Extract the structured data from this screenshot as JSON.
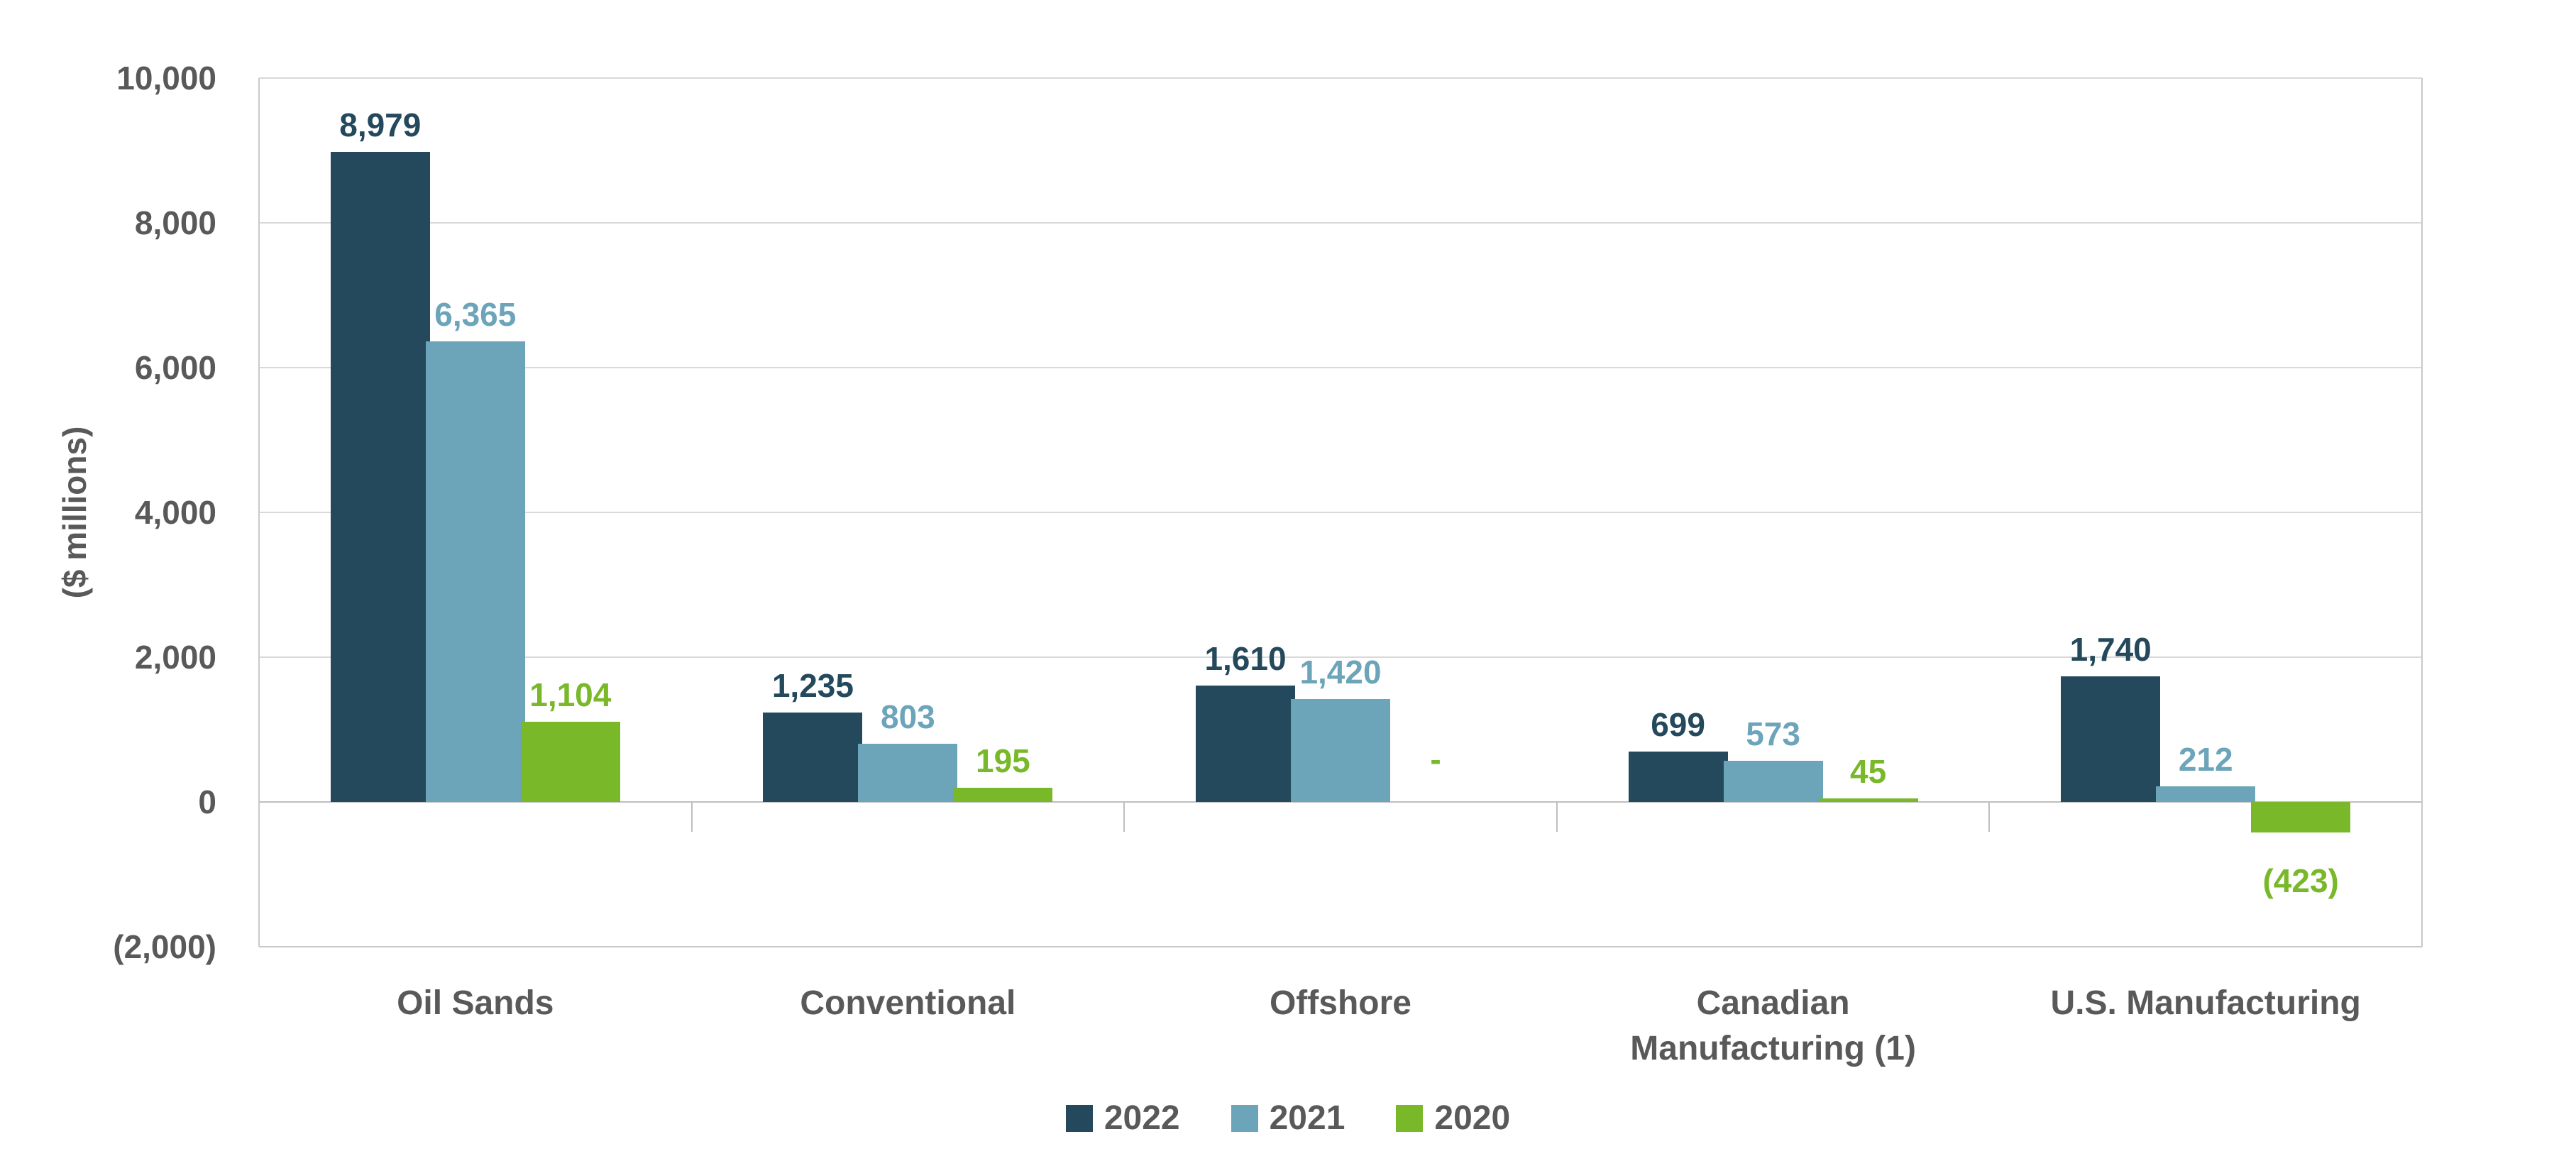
{
  "chart_data": {
    "type": "bar",
    "title": "",
    "ylabel": "($ millions)",
    "grid": true,
    "legend_position": "bottom-center",
    "ylim": [
      -2000,
      10000
    ],
    "y_ticks": [
      {
        "value": 10000,
        "label": "10,000"
      },
      {
        "value": 8000,
        "label": "8,000"
      },
      {
        "value": 6000,
        "label": "6,000"
      },
      {
        "value": 4000,
        "label": "4,000"
      },
      {
        "value": 2000,
        "label": "2,000"
      },
      {
        "value": 0,
        "label": "0"
      },
      {
        "value": -2000,
        "label": "(2,000)"
      }
    ],
    "categories": [
      "Oil Sands",
      "Conventional",
      "Offshore",
      "Canadian Manufacturing (1)",
      "U.S. Manufacturing"
    ],
    "series": [
      {
        "name": "2022",
        "color": "#24495C",
        "values": [
          8979,
          1235,
          1610,
          699,
          1740
        ],
        "labels": [
          "8,979",
          "1,235",
          "1,610",
          "699",
          "1,740"
        ]
      },
      {
        "name": "2021",
        "color": "#6CA4BA",
        "values": [
          6365,
          803,
          1420,
          573,
          212
        ],
        "labels": [
          "6,365",
          "803",
          "1,420",
          "573",
          "212"
        ]
      },
      {
        "name": "2020",
        "color": "#78B829",
        "values": [
          1104,
          195,
          null,
          45,
          -423
        ],
        "labels": [
          "1,104",
          "195",
          "-",
          "45",
          "(423)"
        ]
      }
    ],
    "nil_marker": "-",
    "colors": {
      "gridline": "#D9D9D9",
      "axis": "#BFBFBF",
      "text": "#595959"
    }
  }
}
